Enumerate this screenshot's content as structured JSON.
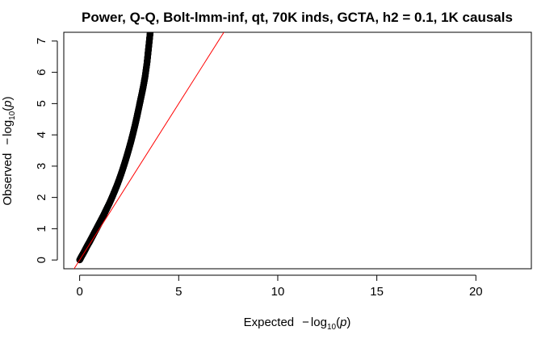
{
  "chart_data": {
    "type": "scatter",
    "title": "Power, Q-Q, Bolt-lmm-inf, qt, 70K inds, GCTA, h2 = 0.1, 1K causals",
    "xlabel": {
      "prefix": "Expected",
      "minus": "−",
      "log": "log",
      "sub": "10",
      "open": "(",
      "var": "p",
      "close": ")"
    },
    "ylabel": {
      "prefix": "Observed",
      "minus": "−",
      "log": "log",
      "sub": "10",
      "open": "(",
      "var": "p",
      "close": ")"
    },
    "xlim": [
      -0.8,
      22.8
    ],
    "ylim": [
      -0.28,
      7.28
    ],
    "x_ticks": [
      0,
      5,
      10,
      15,
      20
    ],
    "y_ticks": [
      0,
      1,
      2,
      3,
      4,
      5,
      6,
      7
    ],
    "grid": false,
    "legend": "none",
    "reference_line": {
      "slope": 1,
      "intercept": 0,
      "color": "#ff0000"
    },
    "point_color": "#000000",
    "series": [
      {
        "x": [
          0.0,
          0.1,
          0.2,
          0.3,
          0.4,
          0.5,
          0.6,
          0.7,
          0.8,
          0.9,
          1.0,
          1.1,
          1.2,
          1.3,
          1.4,
          1.5,
          1.6,
          1.7,
          1.8,
          1.9,
          2.0,
          2.1,
          2.2,
          2.3,
          2.4,
          2.5,
          2.6,
          2.7,
          2.8,
          2.9,
          3.0,
          3.1,
          3.2,
          3.3,
          3.4,
          3.45,
          3.5,
          3.55,
          3.6
        ],
        "y": [
          0.0,
          0.12,
          0.23,
          0.35,
          0.47,
          0.58,
          0.7,
          0.82,
          0.94,
          1.06,
          1.18,
          1.3,
          1.42,
          1.55,
          1.68,
          1.81,
          1.95,
          2.1,
          2.25,
          2.41,
          2.58,
          2.76,
          2.95,
          3.15,
          3.36,
          3.58,
          3.81,
          4.06,
          4.32,
          4.6,
          4.9,
          5.2,
          5.5,
          5.85,
          6.3,
          6.6,
          6.9,
          7.2,
          7.5
        ]
      }
    ]
  }
}
